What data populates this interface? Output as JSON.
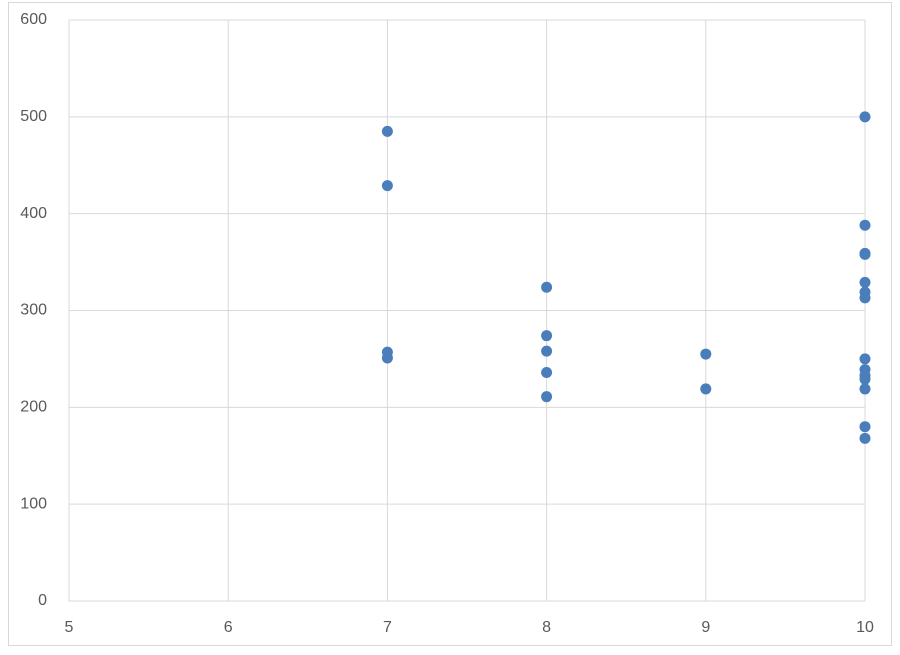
{
  "chart_data": {
    "type": "scatter",
    "x": [
      7,
      7,
      7,
      7,
      8,
      8,
      8,
      8,
      8,
      9,
      9,
      10,
      10,
      10,
      10,
      10,
      10,
      10,
      10,
      10,
      10,
      10,
      10,
      10,
      10
    ],
    "values": [
      485,
      429,
      257,
      251,
      324,
      274,
      258,
      236,
      211,
      255,
      219,
      500,
      388,
      359,
      358,
      329,
      319,
      313,
      250,
      239,
      233,
      229,
      219,
      180,
      168
    ],
    "color": "#4a7ebb",
    "xlim": [
      5,
      10
    ],
    "xticks": [
      5,
      6,
      7,
      8,
      9,
      10
    ],
    "ylim": [
      0,
      600
    ],
    "yticks": [
      0,
      100,
      200,
      300,
      400,
      500,
      600
    ],
    "grid": true
  }
}
